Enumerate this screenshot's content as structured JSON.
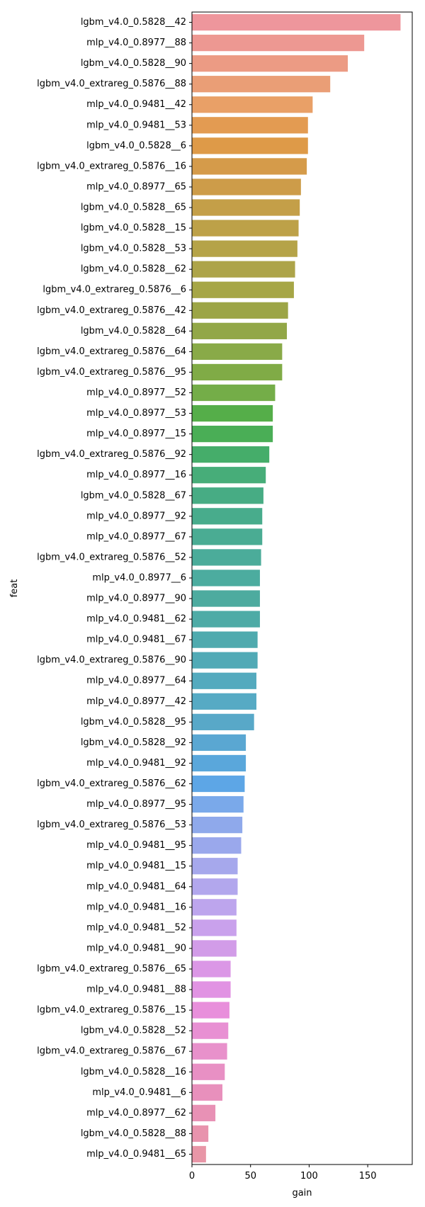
{
  "chart_data": {
    "type": "bar",
    "orientation": "horizontal",
    "title": "",
    "xlabel": "gain",
    "ylabel": "feat",
    "xlim": [
      0,
      188
    ],
    "xticks": [
      0,
      50,
      100,
      150
    ],
    "grid": false,
    "legend": "none",
    "categories": [
      "lgbm_v4.0_0.5828__42",
      "mlp_v4.0_0.8977__88",
      "lgbm_v4.0_0.5828__90",
      "lgbm_v4.0_extrareg_0.5876__88",
      "mlp_v4.0_0.9481__42",
      "mlp_v4.0_0.9481__53",
      "lgbm_v4.0_0.5828__6",
      "lgbm_v4.0_extrareg_0.5876__16",
      "mlp_v4.0_0.8977__65",
      "lgbm_v4.0_0.5828__65",
      "lgbm_v4.0_0.5828__15",
      "lgbm_v4.0_0.5828__53",
      "lgbm_v4.0_0.5828__62",
      "lgbm_v4.0_extrareg_0.5876__6",
      "lgbm_v4.0_extrareg_0.5876__42",
      "lgbm_v4.0_0.5828__64",
      "lgbm_v4.0_extrareg_0.5876__64",
      "lgbm_v4.0_extrareg_0.5876__95",
      "mlp_v4.0_0.8977__52",
      "mlp_v4.0_0.8977__53",
      "mlp_v4.0_0.8977__15",
      "lgbm_v4.0_extrareg_0.5876__92",
      "mlp_v4.0_0.8977__16",
      "lgbm_v4.0_0.5828__67",
      "mlp_v4.0_0.8977__92",
      "mlp_v4.0_0.8977__67",
      "lgbm_v4.0_extrareg_0.5876__52",
      "mlp_v4.0_0.8977__6",
      "mlp_v4.0_0.8977__90",
      "mlp_v4.0_0.9481__62",
      "mlp_v4.0_0.9481__67",
      "lgbm_v4.0_extrareg_0.5876__90",
      "mlp_v4.0_0.8977__64",
      "mlp_v4.0_0.8977__42",
      "lgbm_v4.0_0.5828__95",
      "lgbm_v4.0_0.5828__92",
      "mlp_v4.0_0.9481__92",
      "lgbm_v4.0_extrareg_0.5876__62",
      "mlp_v4.0_0.8977__95",
      "lgbm_v4.0_extrareg_0.5876__53",
      "mlp_v4.0_0.9481__95",
      "mlp_v4.0_0.9481__15",
      "mlp_v4.0_0.9481__64",
      "mlp_v4.0_0.9481__16",
      "mlp_v4.0_0.9481__52",
      "mlp_v4.0_0.9481__90",
      "lgbm_v4.0_extrareg_0.5876__65",
      "mlp_v4.0_0.9481__88",
      "lgbm_v4.0_extrareg_0.5876__15",
      "lgbm_v4.0_0.5828__52",
      "lgbm_v4.0_extrareg_0.5876__67",
      "lgbm_v4.0_0.5828__16",
      "mlp_v4.0_0.9481__6",
      "mlp_v4.0_0.8977__62",
      "lgbm_v4.0_0.5828__88",
      "mlp_v4.0_0.9481__65"
    ],
    "values": [
      178,
      147,
      133,
      118,
      103,
      99,
      99,
      98,
      93,
      92,
      91,
      90,
      88,
      87,
      82,
      81,
      77,
      77,
      71,
      69,
      69,
      66,
      63,
      61,
      60,
      60,
      59,
      58,
      58,
      58,
      56,
      56,
      55,
      55,
      53,
      46,
      46,
      45,
      44,
      43,
      42,
      39,
      39,
      38,
      38,
      38,
      33,
      33,
      32,
      31,
      30,
      28,
      26,
      20,
      14,
      12
    ],
    "colors": [
      "#ee969c",
      "#ed9892",
      "#ec9b84",
      "#ea9e76",
      "#e9a067",
      "#e39b52",
      "#de9a48",
      "#d59b4a",
      "#cd9c49",
      "#c49f48",
      "#bda148",
      "#b5a348",
      "#ada449",
      "#a6a646",
      "#9ca546",
      "#92a747",
      "#89aa48",
      "#80ab46",
      "#74ad48",
      "#55ae49",
      "#4aae56",
      "#45ad6a",
      "#47ad79",
      "#47ac84",
      "#48ac8c",
      "#4aac93",
      "#4bac9a",
      "#4cac9f",
      "#4dab9f",
      "#4eaba6",
      "#4faaae",
      "#51aab6",
      "#54aabe",
      "#56aac4",
      "#58a8c8",
      "#5aa7d2",
      "#5aa7db",
      "#5da6e6",
      "#7aa9ea",
      "#8fa9eb",
      "#9aa8ec",
      "#a6a8ec",
      "#b2a7ed",
      "#bda5ed",
      "#c9a1ec",
      "#d29ce8",
      "#db97e6",
      "#e193e3",
      "#e88fdb",
      "#e890d3",
      "#e891cb",
      "#e890c4",
      "#e890bc",
      "#e891b5",
      "#e893ad",
      "#e896a7"
    ]
  }
}
